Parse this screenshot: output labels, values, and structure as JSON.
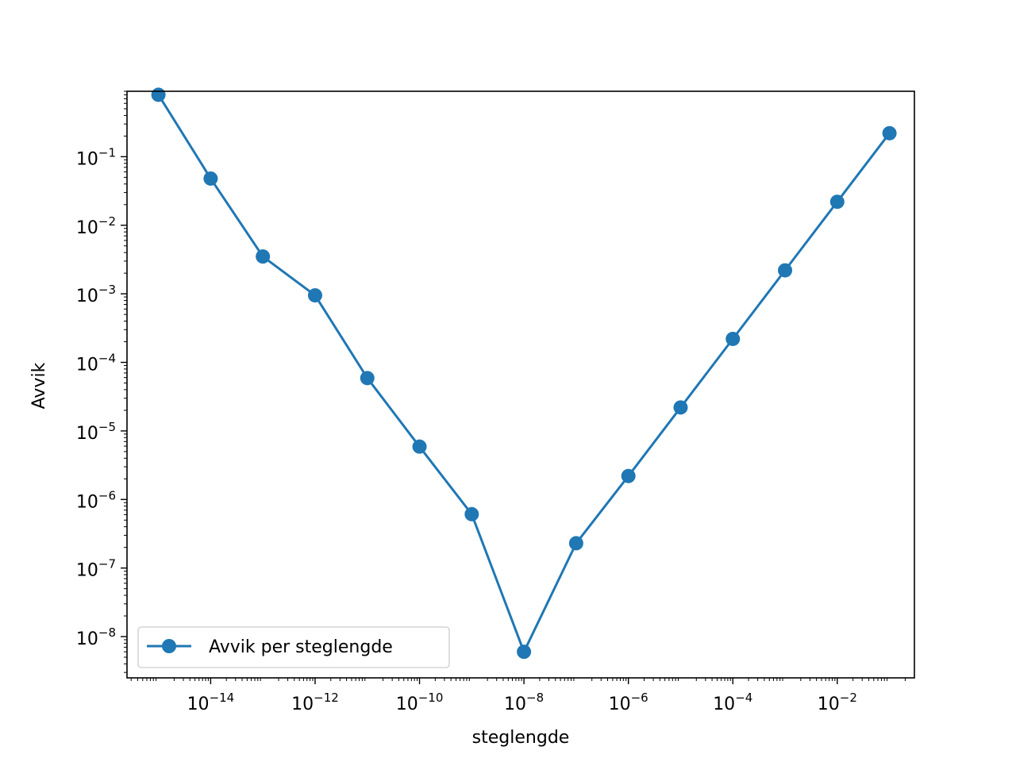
{
  "chart_data": {
    "type": "line",
    "title": "",
    "xlabel": "steglengde",
    "ylabel": "Avvik",
    "xscale": "log",
    "yscale": "log",
    "xlim": [
      2.5e-16,
      0.3
    ],
    "ylim": [
      2.5e-09,
      0.9
    ],
    "x_ticks": [
      {
        "value": 1e-14,
        "base": "10",
        "exp": "−14"
      },
      {
        "value": 1e-12,
        "base": "10",
        "exp": "−12"
      },
      {
        "value": 1e-10,
        "base": "10",
        "exp": "−10"
      },
      {
        "value": 1e-08,
        "base": "10",
        "exp": "−8"
      },
      {
        "value": 1e-06,
        "base": "10",
        "exp": "−6"
      },
      {
        "value": 0.0001,
        "base": "10",
        "exp": "−4"
      },
      {
        "value": 0.01,
        "base": "10",
        "exp": "−2"
      }
    ],
    "y_ticks": [
      {
        "value": 1e-08,
        "base": "10",
        "exp": "−8"
      },
      {
        "value": 1e-07,
        "base": "10",
        "exp": "−7"
      },
      {
        "value": 1e-06,
        "base": "10",
        "exp": "−6"
      },
      {
        "value": 1e-05,
        "base": "10",
        "exp": "−5"
      },
      {
        "value": 0.0001,
        "base": "10",
        "exp": "−4"
      },
      {
        "value": 0.001,
        "base": "10",
        "exp": "−3"
      },
      {
        "value": 0.01,
        "base": "10",
        "exp": "−2"
      },
      {
        "value": 0.1,
        "base": "10",
        "exp": "−1"
      }
    ],
    "grid": false,
    "legend_position": "lower-left",
    "series": [
      {
        "name": "Avvik per steglengde",
        "color": "#1f77b4",
        "marker": "circle",
        "points": [
          {
            "x": 1e-15,
            "y": 0.8
          },
          {
            "x": 1e-14,
            "y": 0.048
          },
          {
            "x": 1e-13,
            "y": 0.0035
          },
          {
            "x": 1e-12,
            "y": 0.00095
          },
          {
            "x": 1e-11,
            "y": 5.9e-05
          },
          {
            "x": 1e-10,
            "y": 5.9e-06
          },
          {
            "x": 1e-09,
            "y": 6.1e-07
          },
          {
            "x": 1e-08,
            "y": 6e-09
          },
          {
            "x": 1e-07,
            "y": 2.3e-07
          },
          {
            "x": 1e-06,
            "y": 2.2e-06
          },
          {
            "x": 1e-05,
            "y": 2.2e-05
          },
          {
            "x": 0.0001,
            "y": 0.00022
          },
          {
            "x": 0.001,
            "y": 0.0022
          },
          {
            "x": 0.01,
            "y": 0.022
          },
          {
            "x": 0.1,
            "y": 0.22
          }
        ]
      }
    ]
  }
}
